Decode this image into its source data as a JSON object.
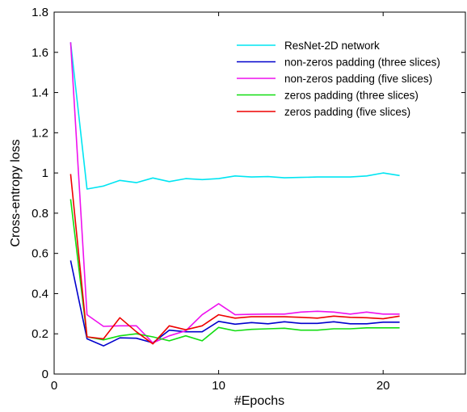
{
  "chart_data": {
    "type": "line",
    "xlabel": "#Epochs",
    "ylabel": "Cross-entropy loss",
    "xlim": [
      0,
      25
    ],
    "ylim": [
      0,
      1.8
    ],
    "xticks": [
      0,
      10,
      20
    ],
    "yticks": [
      0,
      0.2,
      0.4,
      0.6,
      0.8,
      1,
      1.2,
      1.4,
      1.6,
      1.8
    ],
    "x": [
      1,
      2,
      3,
      4,
      5,
      6,
      7,
      8,
      9,
      10,
      11,
      12,
      13,
      14,
      15,
      16,
      17,
      18,
      19,
      20,
      21
    ],
    "legend_position": "top-right",
    "grid": false,
    "series": [
      {
        "name": "ResNet-2D network",
        "color": "#00e5f2",
        "values": [
          1.65,
          0.92,
          0.935,
          0.963,
          0.952,
          0.975,
          0.957,
          0.972,
          0.967,
          0.972,
          0.985,
          0.98,
          0.982,
          0.976,
          0.978,
          0.98,
          0.98,
          0.98,
          0.985,
          1.0,
          0.987
        ]
      },
      {
        "name": "non-zeros padding (three slices)",
        "color": "#0000cc",
        "values": [
          0.565,
          0.175,
          0.14,
          0.18,
          0.178,
          0.155,
          0.218,
          0.21,
          0.21,
          0.262,
          0.248,
          0.256,
          0.25,
          0.26,
          0.252,
          0.252,
          0.26,
          0.25,
          0.25,
          0.258,
          0.258
        ]
      },
      {
        "name": "non-zeros padding (five slices)",
        "color": "#ee11ee",
        "values": [
          1.65,
          0.295,
          0.237,
          0.24,
          0.24,
          0.155,
          0.19,
          0.215,
          0.295,
          0.35,
          0.295,
          0.297,
          0.298,
          0.298,
          0.308,
          0.312,
          0.308,
          0.298,
          0.308,
          0.298,
          0.298
        ]
      },
      {
        "name": "zeros padding (three slices)",
        "color": "#11dd11",
        "values": [
          0.87,
          0.185,
          0.17,
          0.19,
          0.2,
          0.185,
          0.165,
          0.19,
          0.165,
          0.232,
          0.215,
          0.222,
          0.225,
          0.228,
          0.218,
          0.218,
          0.225,
          0.225,
          0.23,
          0.23,
          0.23
        ]
      },
      {
        "name": "zeros padding (five slices)",
        "color": "#ee0000",
        "values": [
          0.995,
          0.185,
          0.175,
          0.28,
          0.21,
          0.15,
          0.24,
          0.22,
          0.24,
          0.295,
          0.278,
          0.285,
          0.285,
          0.285,
          0.282,
          0.278,
          0.288,
          0.282,
          0.28,
          0.275,
          0.288
        ]
      }
    ]
  }
}
